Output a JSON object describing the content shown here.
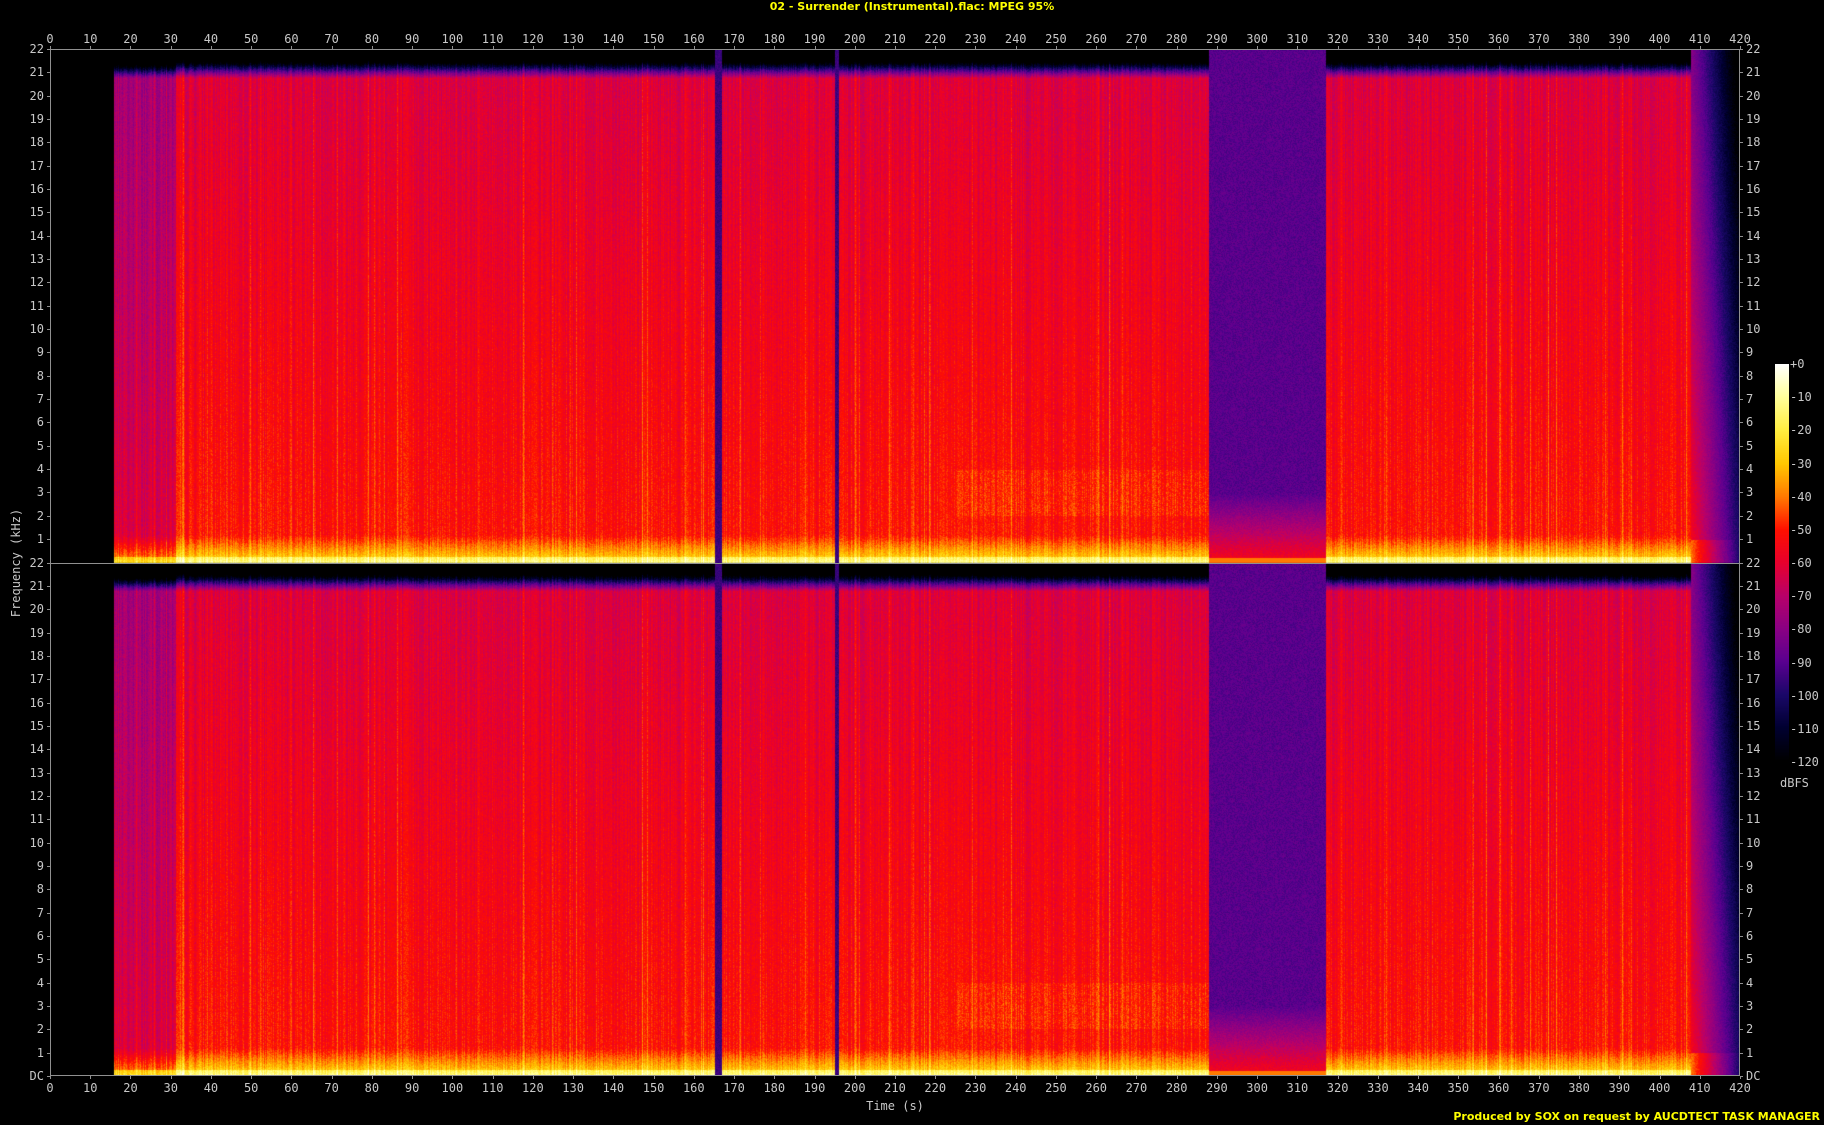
{
  "title": "02 - Surrender (Instrumental).flac: MPEG 95%",
  "footer": "Produced by SOX on request by AUCDTECT TASK MANAGER",
  "chart_data": {
    "type": "heatmap",
    "title": "02 - Surrender (Instrumental).flac: MPEG 95%",
    "xlabel": "Time (s)",
    "ylabel": "Frequency (kHz)",
    "xlim": [
      0,
      420
    ],
    "ylim": [
      0,
      22
    ],
    "channels": 2,
    "x_ticks": [
      "0",
      "10",
      "20",
      "30",
      "40",
      "50",
      "60",
      "70",
      "80",
      "90",
      "100",
      "110",
      "120",
      "130",
      "140",
      "150",
      "160",
      "170",
      "180",
      "190",
      "200",
      "210",
      "220",
      "230",
      "240",
      "250",
      "260",
      "270",
      "280",
      "290",
      "300",
      "310",
      "320",
      "330",
      "340",
      "350",
      "360",
      "370",
      "380",
      "390",
      "400",
      "410",
      "420"
    ],
    "y_ticks": [
      "DC",
      "1",
      "2",
      "3",
      "4",
      "5",
      "6",
      "7",
      "8",
      "9",
      "10",
      "11",
      "12",
      "13",
      "14",
      "15",
      "16",
      "17",
      "18",
      "19",
      "20",
      "21",
      "22"
    ],
    "colorbar": {
      "label": "dBFS",
      "range": [
        -120,
        0
      ],
      "ticks": [
        "+0",
        "-10",
        "-20",
        "-30",
        "-40",
        "-50",
        "-60",
        "-70",
        "-80",
        "-90",
        "-100",
        "-110",
        "-120"
      ],
      "colors": [
        "#ffffff",
        "#ffff9a",
        "#ffee40",
        "#ffc800",
        "#ff7a00",
        "#ff1000",
        "#e8002e",
        "#b8006a",
        "#8a0084",
        "#5a0090",
        "#1a0868",
        "#000030",
        "#000000"
      ]
    },
    "grid": false,
    "signal_features": {
      "audio_start_s": 15.5,
      "quiet_intro_end_s": 31,
      "dropouts_s": [
        166,
        195.5
      ],
      "lowpassed_section_s": [
        288,
        317
      ],
      "fade_out_start_s": 408,
      "upper_cutoff_khz": 20.8
    }
  }
}
